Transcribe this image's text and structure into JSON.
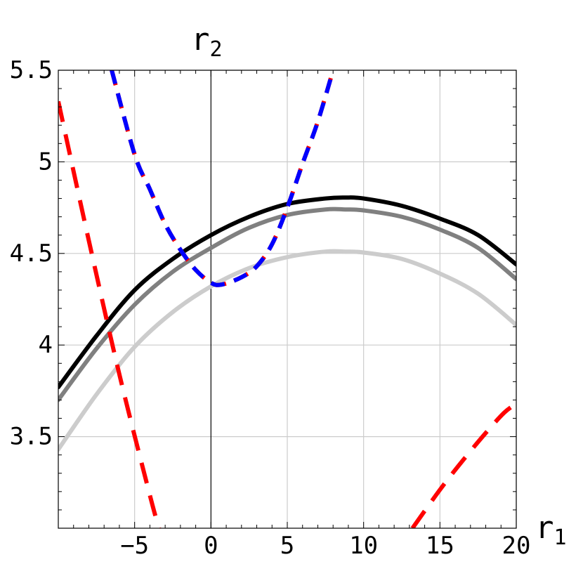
{
  "chart_data": {
    "type": "line",
    "xlim": [
      -10,
      20
    ],
    "ylim": [
      3,
      5.5
    ],
    "grid": true,
    "xlabel": "r",
    "xlabel_sub": "1",
    "ylabel": "r",
    "ylabel_sub": "2",
    "x_ticks": [
      {
        "value": -5,
        "label": "-5"
      },
      {
        "value": 0,
        "label": "0"
      },
      {
        "value": 5,
        "label": "5"
      },
      {
        "value": 10,
        "label": "10"
      },
      {
        "value": 15,
        "label": "15"
      },
      {
        "value": 20,
        "label": "20"
      }
    ],
    "y_ticks": [
      {
        "value": 3.5,
        "label": "3.5"
      },
      {
        "value": 4,
        "label": "4"
      },
      {
        "value": 4.5,
        "label": "4.5"
      },
      {
        "value": 5,
        "label": "5"
      },
      {
        "value": 5.5,
        "label": "5.5"
      }
    ],
    "series": [
      {
        "color": "#cccccc",
        "dash": "solid",
        "x": [
          -10,
          -7.5,
          -5,
          -2.5,
          0,
          2.5,
          5,
          7.5,
          8.8,
          10,
          12.5,
          15,
          17.5,
          20
        ],
        "y": [
          3.43,
          3.73,
          3.99,
          4.18,
          4.32,
          4.42,
          4.48,
          4.51,
          4.51,
          4.505,
          4.47,
          4.39,
          4.28,
          4.11
        ]
      },
      {
        "color": "#808080",
        "dash": "solid",
        "x": [
          -10,
          -7.5,
          -5,
          -2.5,
          0,
          2.5,
          5,
          7.5,
          8.8,
          10,
          12.5,
          15,
          17.5,
          20
        ],
        "y": [
          3.7,
          3.98,
          4.22,
          4.4,
          4.53,
          4.64,
          4.71,
          4.74,
          4.74,
          4.735,
          4.7,
          4.63,
          4.53,
          4.36
        ]
      },
      {
        "color": "#000000",
        "dash": "solid",
        "x": [
          -10,
          -7.5,
          -5,
          -2.5,
          0,
          2.5,
          5,
          7.5,
          8.8,
          10,
          12.5,
          15,
          17.5,
          20
        ],
        "y": [
          3.77,
          4.05,
          4.3,
          4.47,
          4.6,
          4.7,
          4.77,
          4.8,
          4.805,
          4.8,
          4.76,
          4.69,
          4.6,
          4.44
        ]
      },
      {
        "color": "#ff0000",
        "dash": "long",
        "x": [
          -10,
          -8,
          -6,
          -4,
          -3.4
        ],
        "y": [
          5.33,
          4.57,
          3.84,
          3.18,
          3.0
        ]
      },
      {
        "color": "#ff0000",
        "dash": "long",
        "x": [
          13.2,
          15,
          16.5,
          18,
          19.2,
          20
        ],
        "y": [
          3.0,
          3.21,
          3.37,
          3.52,
          3.63,
          3.68
        ]
      },
      {
        "color": "#ff0000",
        "dash": "medium",
        "x": [
          -6.5,
          -5,
          -4,
          -3,
          -2,
          -1,
          0,
          0.7,
          2,
          3,
          4,
          5,
          6,
          7,
          8
        ],
        "y": [
          5.5,
          5.04,
          4.85,
          4.66,
          4.52,
          4.41,
          4.34,
          4.33,
          4.37,
          4.43,
          4.55,
          4.75,
          4.99,
          5.22,
          5.5
        ]
      },
      {
        "color": "#0000ff",
        "dash": "short",
        "x": [
          -6.5,
          -5,
          -4,
          -3,
          -2,
          -1,
          0,
          0.7,
          2,
          3,
          4,
          5,
          6,
          7,
          8
        ],
        "y": [
          5.5,
          5.04,
          4.85,
          4.66,
          4.52,
          4.41,
          4.34,
          4.33,
          4.37,
          4.43,
          4.55,
          4.75,
          4.99,
          5.22,
          5.5
        ]
      }
    ]
  }
}
